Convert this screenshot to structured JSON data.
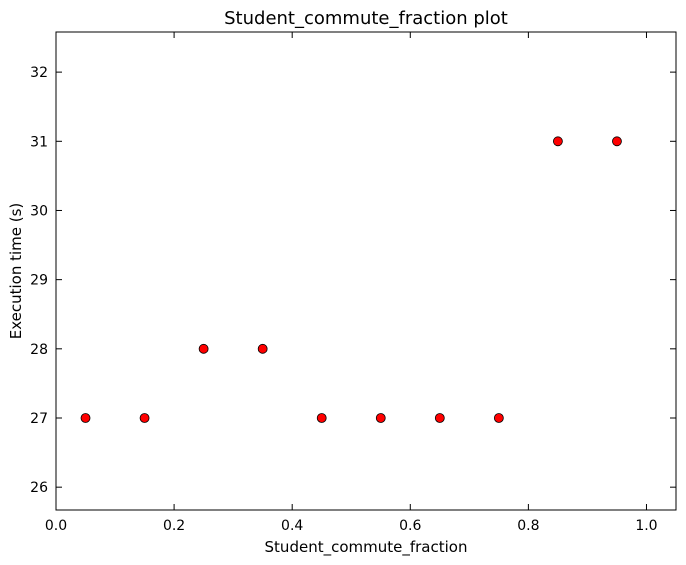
{
  "chart_data": {
    "type": "scatter",
    "title": "Student_commute_fraction plot",
    "xlabel": "Student_commute_fraction",
    "ylabel": "Execution time (s)",
    "xlim": [
      0.0,
      1.05
    ],
    "ylim": [
      25.67,
      32.58
    ],
    "xticks": [
      0.0,
      0.2,
      0.4,
      0.6,
      0.8,
      1.0
    ],
    "xtick_labels": [
      "0.0",
      "0.2",
      "0.4",
      "0.6",
      "0.8",
      "1.0"
    ],
    "yticks": [
      26,
      27,
      28,
      29,
      30,
      31,
      32
    ],
    "ytick_labels": [
      "26",
      "27",
      "28",
      "29",
      "30",
      "31",
      "32"
    ],
    "grid": false,
    "legend": "none",
    "marker_color": "#ff0000",
    "marker_edge_color": "#000000",
    "series": [
      {
        "x": [
          0.05,
          0.15,
          0.25,
          0.35,
          0.45,
          0.55,
          0.65,
          0.75,
          0.85,
          0.95
        ],
        "y": [
          27,
          27,
          28,
          28,
          27,
          27,
          27,
          27,
          31,
          31
        ]
      }
    ]
  }
}
